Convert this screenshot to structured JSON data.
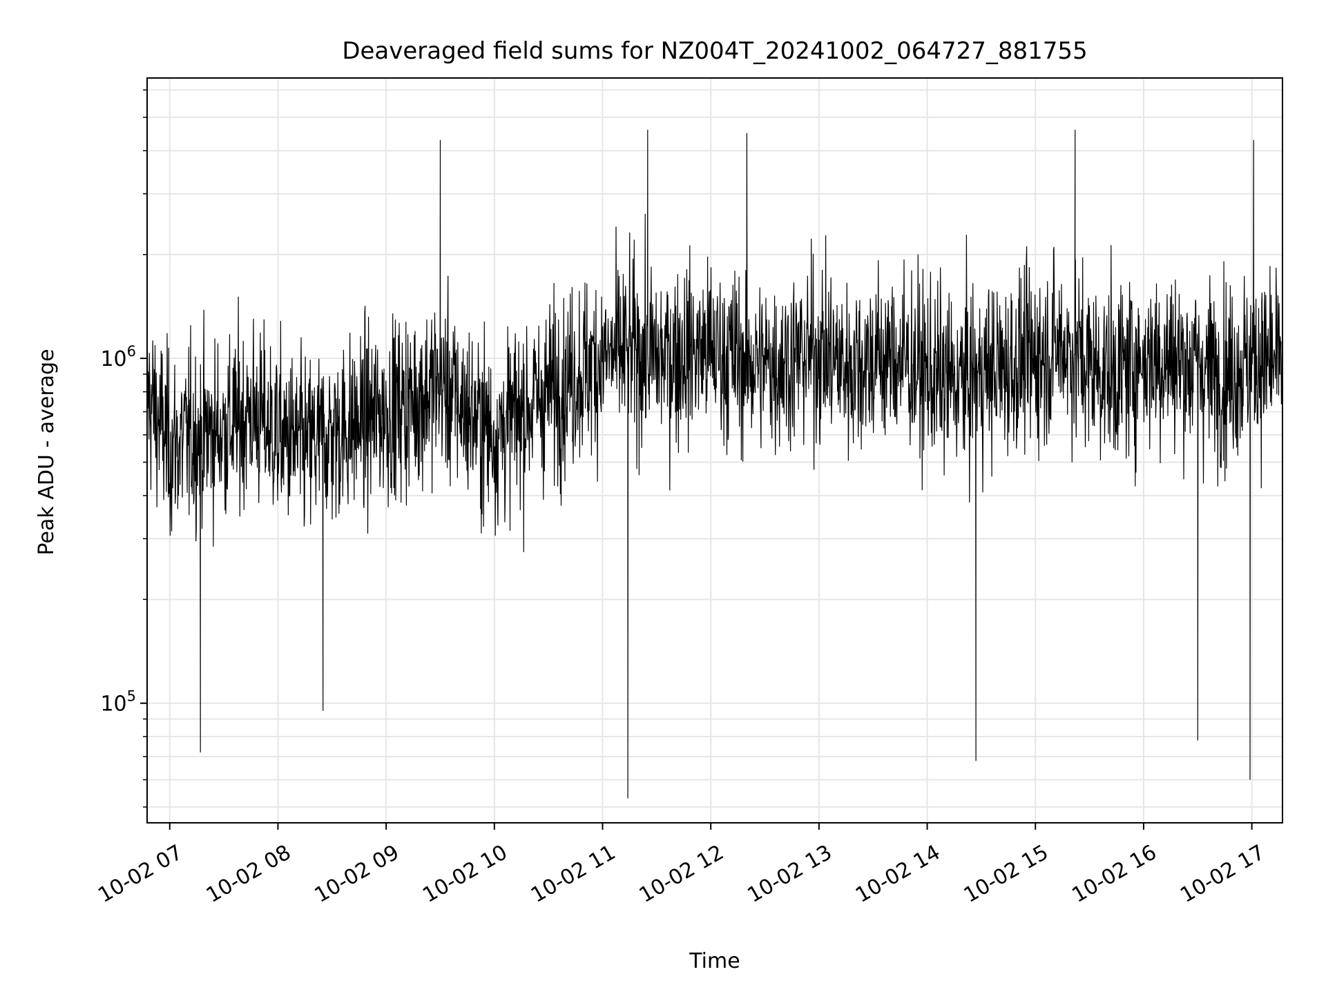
{
  "chart_data": {
    "type": "line",
    "title": "Deaveraged field sums for NZ004T_20241002_064727_881755",
    "xlabel": "Time",
    "ylabel": "Peak ADU - average",
    "x_range": [
      "2024-10-02 06:47:27",
      "2024-10-02 17:17:00"
    ],
    "y_scale": "log",
    "ylim": [
      45000,
      6500000
    ],
    "grid": true,
    "line_color": "#000000",
    "x_ticks": [
      {
        "label": "10-02 07",
        "value": "2024-10-02 07:00"
      },
      {
        "label": "10-02 08",
        "value": "2024-10-02 08:00"
      },
      {
        "label": "10-02 09",
        "value": "2024-10-02 09:00"
      },
      {
        "label": "10-02 10",
        "value": "2024-10-02 10:00"
      },
      {
        "label": "10-02 11",
        "value": "2024-10-02 11:00"
      },
      {
        "label": "10-02 12",
        "value": "2024-10-02 12:00"
      },
      {
        "label": "10-02 13",
        "value": "2024-10-02 13:00"
      },
      {
        "label": "10-02 14",
        "value": "2024-10-02 14:00"
      },
      {
        "label": "10-02 15",
        "value": "2024-10-02 15:00"
      },
      {
        "label": "10-02 16",
        "value": "2024-10-02 16:00"
      },
      {
        "label": "10-02 17",
        "value": "2024-10-02 17:00"
      }
    ],
    "y_ticks": [
      {
        "value": 100000,
        "base": "10",
        "exp": "5"
      },
      {
        "value": 1000000,
        "base": "10",
        "exp": "6"
      }
    ],
    "series": [
      {
        "x": [
          "2024-10-02 06:47",
          "2024-10-02 07:00",
          "2024-10-02 07:15",
          "2024-10-02 07:30",
          "2024-10-02 07:45",
          "2024-10-02 08:00",
          "2024-10-02 08:15",
          "2024-10-02 08:30",
          "2024-10-02 08:45",
          "2024-10-02 09:00",
          "2024-10-02 09:15",
          "2024-10-02 09:30",
          "2024-10-02 09:45",
          "2024-10-02 10:00",
          "2024-10-02 10:15",
          "2024-10-02 10:30",
          "2024-10-02 10:45",
          "2024-10-02 11:00",
          "2024-10-02 11:15",
          "2024-10-02 11:30",
          "2024-10-02 11:45",
          "2024-10-02 12:00",
          "2024-10-02 12:15",
          "2024-10-02 12:30",
          "2024-10-02 12:45",
          "2024-10-02 13:00",
          "2024-10-02 13:15",
          "2024-10-02 13:30",
          "2024-10-02 13:45",
          "2024-10-02 14:00",
          "2024-10-02 14:15",
          "2024-10-02 14:30",
          "2024-10-02 14:45",
          "2024-10-02 15:00",
          "2024-10-02 15:15",
          "2024-10-02 15:30",
          "2024-10-02 15:45",
          "2024-10-02 16:00",
          "2024-10-02 16:15",
          "2024-10-02 16:30",
          "2024-10-02 16:45",
          "2024-10-02 17:00",
          "2024-10-02 17:15"
        ],
        "y": [
          800000,
          550000,
          600000,
          620000,
          700000,
          600000,
          550000,
          600000,
          650000,
          700000,
          750000,
          850000,
          700000,
          600000,
          700000,
          800000,
          900000,
          1000000,
          1050000,
          1000000,
          1050000,
          1050000,
          1000000,
          950000,
          1000000,
          1050000,
          950000,
          1000000,
          1000000,
          900000,
          850000,
          900000,
          950000,
          1000000,
          1100000,
          950000,
          900000,
          1000000,
          1000000,
          950000,
          900000,
          1000000,
          950000
        ],
        "spikes": [
          {
            "x": "2024-10-02 07:17",
            "y": 72000
          },
          {
            "x": "2024-10-02 08:25",
            "y": 95000
          },
          {
            "x": "2024-10-02 09:30",
            "y": 4300000
          },
          {
            "x": "2024-10-02 11:14",
            "y": 53000
          },
          {
            "x": "2024-10-02 11:25",
            "y": 4600000
          },
          {
            "x": "2024-10-02 12:20",
            "y": 4500000
          },
          {
            "x": "2024-10-02 14:27",
            "y": 68000
          },
          {
            "x": "2024-10-02 15:22",
            "y": 4600000
          },
          {
            "x": "2024-10-02 16:30",
            "y": 78000
          },
          {
            "x": "2024-10-02 16:59",
            "y": 60000
          },
          {
            "x": "2024-10-02 17:01",
            "y": 4300000
          }
        ]
      }
    ]
  }
}
